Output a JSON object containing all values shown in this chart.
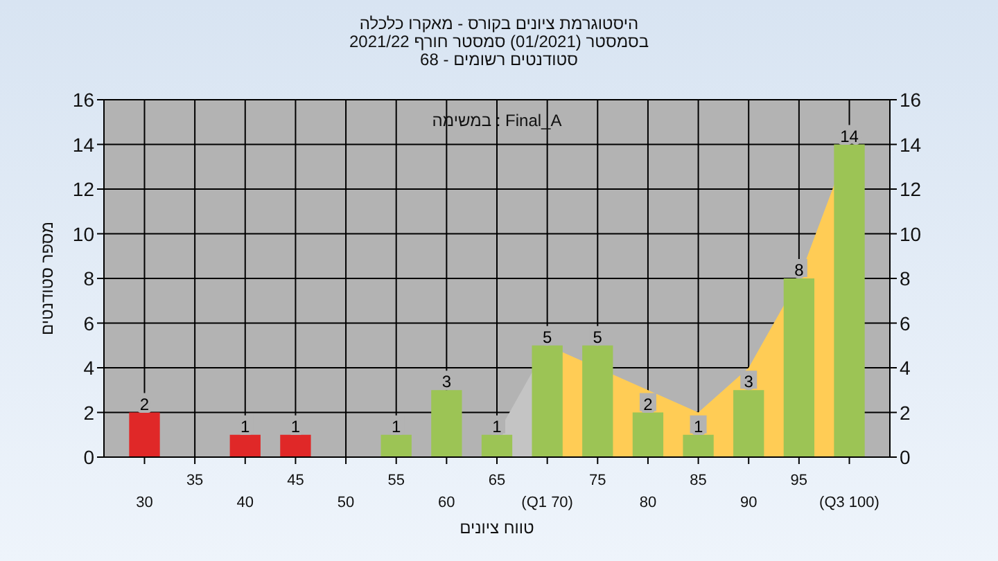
{
  "chart_data": {
    "type": "bar",
    "title": "היסטוגרמת ציונים בקורס - מאקרו כלכלה",
    "subtitle": "בסמסטר  (01/2021)  סמסטר חורף 2021/22\nסטודנטים רשומים - 68",
    "xlabel": "טווח ציונים",
    "ylabel": "מספר סטודנטים",
    "annotations": [
      "Final_A : במשימה"
    ],
    "categories": [
      "30",
      "35",
      "40",
      "45",
      "50",
      "55",
      "60",
      "65",
      "(Q1 70)",
      "75",
      "80",
      "85",
      "90",
      "95",
      "(Q3 100)"
    ],
    "series": [
      {
        "type": "area",
        "color": "#c4c4c4",
        "values": [
          null,
          null,
          null,
          null,
          null,
          null,
          null,
          1,
          5,
          null,
          null,
          null,
          null,
          null,
          null
        ]
      },
      {
        "type": "area",
        "color": "#ffcc55",
        "values": [
          null,
          null,
          null,
          null,
          null,
          null,
          null,
          null,
          5,
          null,
          3,
          2,
          4,
          8,
          14
        ]
      },
      {
        "values": [
          2,
          0,
          1,
          1,
          0,
          1,
          3,
          1,
          5,
          5,
          2,
          1,
          3,
          8,
          14
        ],
        "colors": [
          "#e02828",
          "#e02828",
          "#e02828",
          "#e02828",
          "#e02828",
          "#9cc455",
          "#9cc455",
          "#9cc455",
          "#9cc455",
          "#9cc455",
          "#9cc455",
          "#9cc455",
          "#9cc455",
          "#9cc455",
          "#9cc455"
        ],
        "value_labels": [
          "2",
          null,
          "1",
          "1",
          null,
          "1",
          "3",
          "1",
          "5",
          "5",
          "2",
          "1",
          "3",
          "8",
          "14"
        ]
      }
    ],
    "ylim": [
      0,
      16
    ],
    "yticks": [
      0,
      2,
      4,
      6,
      8,
      10,
      12,
      14,
      16
    ],
    "y2lim": [
      0,
      16
    ],
    "y2ticks": [
      0,
      2,
      4,
      6,
      8,
      10,
      12,
      14,
      16
    ],
    "grid": true
  }
}
